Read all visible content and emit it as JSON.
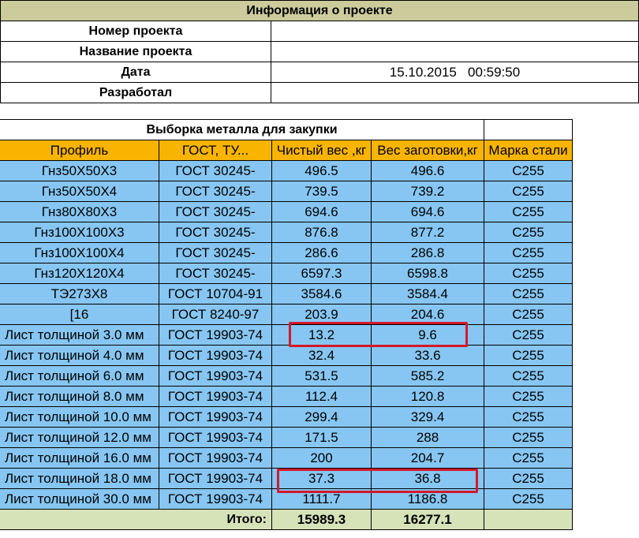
{
  "project_info": {
    "title": "Информация о проекте",
    "rows": [
      {
        "label": "Номер проекта",
        "value": ""
      },
      {
        "label": "Название проекта",
        "value": ""
      },
      {
        "label": "Дата",
        "value": "15.10.2015   00:59:50"
      },
      {
        "label": "Разработал",
        "value": ""
      }
    ]
  },
  "metal_table": {
    "title": "Выборка металла для закупки",
    "headers": [
      "Профиль",
      "ГОСТ, ТУ...",
      "Чистый вес ,кг",
      "Вес заготовки,кг",
      "Марка стали"
    ],
    "rows": [
      [
        "Гнз50Х50Х3",
        "ГОСТ 30245-",
        "496.5",
        "496.6",
        "С255"
      ],
      [
        "Гнз50Х50Х4",
        "ГОСТ 30245-",
        "739.5",
        "739.2",
        "С255"
      ],
      [
        "Гнз80Х80Х3",
        "ГОСТ 30245-",
        "694.6",
        "694.6",
        "С255"
      ],
      [
        "Гнз100Х100Х3",
        "ГОСТ 30245-",
        "876.8",
        "877.2",
        "С255"
      ],
      [
        "Гнз100Х100Х4",
        "ГОСТ 30245-",
        "286.6",
        "286.8",
        "С255"
      ],
      [
        "Гнз120Х120Х4",
        "ГОСТ 30245-",
        "6597.3",
        "6598.8",
        "С255"
      ],
      [
        "ТЭ273Х8",
        "ГОСТ 10704-91",
        "3584.6",
        "3584.4",
        "С255"
      ],
      [
        "[16",
        "ГОСТ 8240-97",
        "203.9",
        "204.6",
        "С255"
      ],
      [
        "Лист толщиной 3.0 мм",
        "ГОСТ 19903-74",
        "13.2",
        "9.6",
        "С255"
      ],
      [
        "Лист толщиной 4.0 мм",
        "ГОСТ 19903-74",
        "32.4",
        "33.6",
        "С255"
      ],
      [
        "Лист толщиной 6.0 мм",
        "ГОСТ 19903-74",
        "531.5",
        "585.2",
        "С255"
      ],
      [
        "Лист толщиной 8.0 мм",
        "ГОСТ 19903-74",
        "112.4",
        "120.8",
        "С255"
      ],
      [
        "Лист толщиной 10.0 мм",
        "ГОСТ 19903-74",
        "299.4",
        "329.4",
        "С255"
      ],
      [
        "Лист толщиной 12.0 мм",
        "ГОСТ 19903-74",
        "171.5",
        "288",
        "С255"
      ],
      [
        "Лист толщиной 16.0 мм",
        "ГОСТ 19903-74",
        "200",
        "204.7",
        "С255"
      ],
      [
        "Лист толщиной 18.0 мм",
        "ГОСТ 19903-74",
        "37.3",
        "36.8",
        "С255"
      ],
      [
        "Лист толщиной 30.0 мм",
        "ГОСТ 19903-74",
        "1111.7",
        "1186.8",
        "С255"
      ]
    ],
    "total": {
      "label": "Итого:",
      "net": "15989.3",
      "blank": "16277.1"
    }
  },
  "colors": {
    "info_header": "#cbcb9c",
    "table_header": "#f8b400",
    "row_fill": "#87c6f2",
    "total_fill": "#d6e2b8",
    "highlight_border": "#d21a2a"
  }
}
